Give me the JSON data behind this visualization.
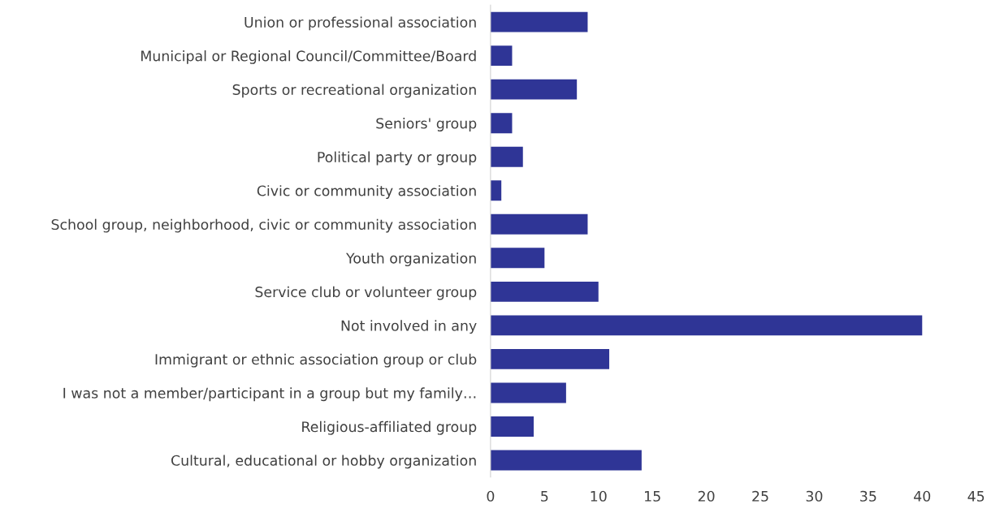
{
  "chart_data": {
    "type": "bar",
    "orientation": "horizontal",
    "categories": [
      "Union or professional association",
      "Municipal or Regional Council/Committee/Board",
      "Sports or recreational organization",
      "Seniors' group",
      "Political party or group",
      "Civic or community association",
      "School group, neighborhood, civic or community association",
      "Youth organization",
      "Service club or volunteer group",
      "Not involved in any",
      "Immigrant or ethnic association group or club",
      "I was not a member/participant in a group but my family…",
      "Religious-affiliated group",
      "Cultural, educational or hobby organization"
    ],
    "values": [
      9,
      2,
      8,
      2,
      3,
      1,
      9,
      5,
      10,
      40,
      11,
      7,
      4,
      14
    ],
    "color": "#2f3596",
    "xlim": [
      0,
      45
    ],
    "xticks": [
      0,
      5,
      10,
      15,
      20,
      25,
      30,
      35,
      40,
      45
    ],
    "grid": false,
    "legend": false
  }
}
